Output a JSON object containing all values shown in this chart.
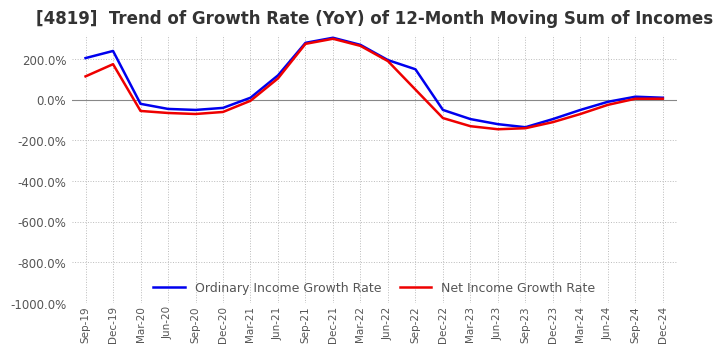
{
  "title": "[4819]  Trend of Growth Rate (YoY) of 12-Month Moving Sum of Incomes",
  "title_fontsize": 12,
  "ylim": [
    -1000,
    320
  ],
  "yticks": [
    200,
    0,
    -200,
    -400,
    -600,
    -800,
    -1000
  ],
  "ytick_labels": [
    "200.0%",
    "0.0%",
    "-200.0%",
    "-400.0%",
    "-600.0%",
    "-800.0%",
    "-1000.0%"
  ],
  "background_color": "#ffffff",
  "grid_color": "#bbbbbb",
  "ordinary_color": "#0000ee",
  "net_color": "#ee0000",
  "legend_labels": [
    "Ordinary Income Growth Rate",
    "Net Income Growth Rate"
  ],
  "x_labels": [
    "Sep-19",
    "Dec-19",
    "Mar-20",
    "Jun-20",
    "Sep-20",
    "Dec-20",
    "Mar-21",
    "Jun-21",
    "Sep-21",
    "Dec-21",
    "Mar-22",
    "Jun-22",
    "Sep-22",
    "Dec-22",
    "Mar-23",
    "Jun-23",
    "Sep-23",
    "Dec-23",
    "Mar-24",
    "Jun-24",
    "Sep-24",
    "Dec-24"
  ],
  "ordinary_income": [
    205,
    240,
    -20,
    -45,
    -50,
    -40,
    10,
    120,
    280,
    305,
    270,
    195,
    150,
    -50,
    -95,
    -120,
    -135,
    -95,
    -50,
    -10,
    15,
    10
  ],
  "net_income": [
    115,
    175,
    -55,
    -65,
    -70,
    -60,
    -5,
    105,
    275,
    300,
    265,
    190,
    50,
    -90,
    -130,
    -145,
    -140,
    -110,
    -70,
    -25,
    5,
    5
  ]
}
